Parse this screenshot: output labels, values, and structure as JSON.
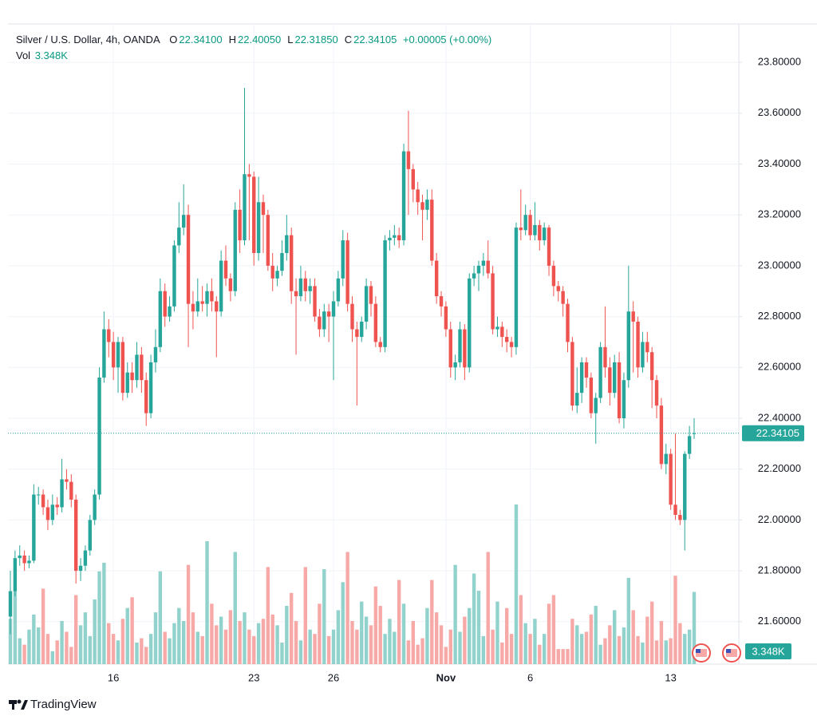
{
  "legend": {
    "symbol": "Silver / U.S. Dollar, 4h, OANDA",
    "fields": [
      {
        "key": "O",
        "value": "22.34100"
      },
      {
        "key": "H",
        "value": "22.40050"
      },
      {
        "key": "L",
        "value": "22.31850"
      },
      {
        "key": "C",
        "value": "22.34105"
      }
    ],
    "change": "+0.00005 (+0.00%)",
    "volume_label": "Vol",
    "volume_value": "3.348K"
  },
  "branding": "TradingView",
  "chart_data": {
    "type": "candlestick",
    "categories": [
      null,
      null,
      null,
      null,
      null,
      null,
      null,
      null,
      null,
      null,
      null,
      null,
      null,
      null,
      null,
      null,
      null,
      null,
      null,
      null,
      null,
      null,
      "16",
      null,
      null,
      null,
      null,
      null,
      null,
      null,
      null,
      null,
      null,
      null,
      null,
      null,
      null,
      null,
      null,
      null,
      null,
      null,
      null,
      null,
      null,
      null,
      null,
      null,
      null,
      null,
      null,
      null,
      "23",
      null,
      null,
      null,
      null,
      null,
      null,
      null,
      null,
      null,
      null,
      null,
      null,
      null,
      null,
      null,
      null,
      "26",
      null,
      null,
      null,
      null,
      null,
      null,
      null,
      null,
      null,
      null,
      null,
      null,
      null,
      null,
      null,
      null,
      null,
      null,
      null,
      null,
      null,
      null,
      null,
      "Nov",
      null,
      null,
      null,
      null,
      null,
      null,
      null,
      null,
      null,
      null,
      null,
      null,
      null,
      null,
      null,
      null,
      null,
      "6",
      null,
      null,
      null,
      null,
      null,
      null,
      null,
      null,
      null,
      null,
      null,
      null,
      null,
      null,
      null,
      null,
      null,
      null,
      null,
      null,
      null,
      null,
      null,
      null,
      null,
      null,
      null,
      null,
      null,
      "13",
      null,
      null,
      null,
      null,
      null
    ],
    "open": [
      21.62,
      21.72,
      21.85,
      21.86,
      21.83,
      21.84,
      22.1,
      22.1,
      22.05,
      22.0,
      22.06,
      22.05,
      22.16,
      22.15,
      22.08,
      21.8,
      21.82,
      21.88,
      22.0,
      22.1,
      22.56,
      22.75,
      22.7,
      22.6,
      22.7,
      22.5,
      22.58,
      22.55,
      22.65,
      22.55,
      22.42,
      22.62,
      22.68,
      22.9,
      22.8,
      22.84,
      23.08,
      23.15,
      23.2,
      22.85,
      22.82,
      22.86,
      22.85,
      22.9,
      22.86,
      22.82,
      23.02,
      22.95,
      22.9,
      23.22,
      23.1,
      23.36,
      23.35,
      23.05,
      23.25,
      23.2,
      23.0,
      22.95,
      22.98,
      23.05,
      23.12,
      22.9,
      22.88,
      22.95,
      22.9,
      22.92,
      22.8,
      22.75,
      22.82,
      22.8,
      22.86,
      22.95,
      23.1,
      22.85,
      22.75,
      22.72,
      22.78,
      22.92,
      22.85,
      22.7,
      22.68,
      23.1,
      23.11,
      23.12,
      23.1,
      23.45,
      23.38,
      23.3,
      23.25,
      23.22,
      23.26,
      23.02,
      22.88,
      22.84,
      22.75,
      22.6,
      22.62,
      22.75,
      22.6,
      22.95,
      22.97,
      23.0,
      23.02,
      22.97,
      22.75,
      22.76,
      22.72,
      22.7,
      22.68,
      23.15,
      23.14,
      23.2,
      23.12,
      23.16,
      23.1,
      23.15,
      23.0,
      22.92,
      22.9,
      22.85,
      22.7,
      22.45,
      22.5,
      22.62,
      22.56,
      22.42,
      22.48,
      22.68,
      22.6,
      22.5,
      22.62,
      22.4,
      22.55,
      22.82,
      22.78,
      22.6,
      22.7,
      22.66,
      22.55,
      22.45,
      22.22,
      22.26,
      22.06,
      22.02,
      22.0,
      22.26,
      22.341
    ],
    "high": [
      21.8,
      21.88,
      21.9,
      21.88,
      21.86,
      22.14,
      22.13,
      22.12,
      22.08,
      22.1,
      22.09,
      22.24,
      22.2,
      22.18,
      22.1,
      21.85,
      21.9,
      22.02,
      22.12,
      22.6,
      22.82,
      22.79,
      22.74,
      22.72,
      22.72,
      22.62,
      22.62,
      22.7,
      22.68,
      22.58,
      22.65,
      22.75,
      22.95,
      22.93,
      22.88,
      23.1,
      23.25,
      23.32,
      23.24,
      22.9,
      22.95,
      22.92,
      22.93,
      22.95,
      22.88,
      23.06,
      23.08,
      22.97,
      23.25,
      23.3,
      23.7,
      23.4,
      23.37,
      23.35,
      23.28,
      23.22,
      23.05,
      23.0,
      23.1,
      23.2,
      23.15,
      22.95,
      23.0,
      22.98,
      22.95,
      22.95,
      22.83,
      22.85,
      22.85,
      22.9,
      22.98,
      23.14,
      23.13,
      22.88,
      22.78,
      22.8,
      22.95,
      22.94,
      22.88,
      22.72,
      23.12,
      23.14,
      23.16,
      23.15,
      23.48,
      23.61,
      23.4,
      23.33,
      23.28,
      23.3,
      23.3,
      23.05,
      22.9,
      22.86,
      22.78,
      22.65,
      22.78,
      22.77,
      22.97,
      23.0,
      23.02,
      23.05,
      23.1,
      23.0,
      22.8,
      22.78,
      22.75,
      22.72,
      23.17,
      23.3,
      23.24,
      23.22,
      23.25,
      23.18,
      23.17,
      23.16,
      23.02,
      22.94,
      22.92,
      22.87,
      22.72,
      22.6,
      22.64,
      22.64,
      22.58,
      22.5,
      22.7,
      22.84,
      22.64,
      22.65,
      22.66,
      22.58,
      23.0,
      22.86,
      22.8,
      22.74,
      22.74,
      22.68,
      22.57,
      22.48,
      22.3,
      22.28,
      22.34,
      22.04,
      22.27,
      22.37,
      22.4005
    ],
    "low": [
      21.55,
      21.7,
      21.82,
      21.8,
      21.81,
      21.83,
      22.06,
      22.02,
      21.96,
      21.98,
      22.02,
      22.03,
      22.12,
      22.05,
      21.75,
      21.76,
      21.8,
      21.86,
      21.98,
      22.08,
      22.54,
      22.64,
      22.55,
      22.5,
      22.47,
      22.48,
      22.5,
      22.52,
      22.5,
      22.37,
      22.4,
      22.58,
      22.66,
      22.76,
      22.78,
      22.82,
      23.05,
      23.12,
      22.68,
      22.75,
      22.8,
      22.82,
      22.8,
      22.82,
      22.64,
      22.8,
      22.92,
      22.86,
      22.88,
      23.05,
      23.08,
      23.1,
      23.0,
      23.02,
      23.05,
      22.98,
      22.9,
      22.92,
      22.96,
      23.02,
      22.85,
      22.65,
      22.86,
      22.86,
      22.85,
      22.78,
      22.72,
      22.72,
      22.7,
      22.55,
      22.84,
      22.92,
      22.82,
      22.7,
      22.45,
      22.7,
      22.75,
      22.8,
      22.68,
      22.66,
      22.66,
      23.06,
      23.08,
      23.07,
      23.08,
      23.2,
      23.25,
      23.2,
      23.1,
      23.18,
      23.0,
      22.85,
      22.8,
      22.72,
      22.56,
      22.55,
      22.6,
      22.55,
      22.58,
      22.92,
      22.9,
      22.96,
      22.95,
      22.73,
      22.72,
      22.68,
      22.66,
      22.64,
      22.65,
      23.1,
      23.12,
      23.1,
      23.1,
      23.06,
      23.08,
      22.96,
      22.88,
      22.86,
      22.8,
      22.66,
      22.43,
      22.42,
      22.46,
      22.52,
      22.4,
      22.3,
      22.46,
      22.56,
      22.45,
      22.48,
      22.38,
      22.36,
      22.52,
      22.58,
      22.56,
      22.58,
      22.62,
      22.44,
      22.4,
      22.2,
      22.18,
      22.04,
      22.0,
      21.98,
      21.88,
      22.24,
      22.3185
    ],
    "close": [
      21.72,
      21.85,
      21.86,
      21.83,
      21.84,
      22.1,
      22.1,
      22.05,
      22.0,
      22.06,
      22.05,
      22.16,
      22.15,
      22.08,
      21.8,
      21.82,
      21.88,
      22.0,
      22.1,
      22.56,
      22.75,
      22.7,
      22.6,
      22.7,
      22.5,
      22.58,
      22.55,
      22.65,
      22.55,
      22.42,
      22.62,
      22.68,
      22.9,
      22.8,
      22.84,
      23.08,
      23.15,
      23.2,
      22.85,
      22.82,
      22.86,
      22.85,
      22.9,
      22.86,
      22.82,
      23.02,
      22.95,
      22.9,
      23.22,
      23.1,
      23.36,
      23.35,
      23.05,
      23.25,
      23.2,
      23.0,
      22.95,
      22.98,
      23.05,
      23.12,
      22.9,
      22.88,
      22.95,
      22.9,
      22.92,
      22.8,
      22.75,
      22.82,
      22.8,
      22.86,
      22.95,
      23.1,
      22.85,
      22.75,
      22.72,
      22.78,
      22.92,
      22.85,
      22.7,
      22.68,
      23.1,
      23.11,
      23.12,
      23.1,
      23.45,
      23.38,
      23.3,
      23.25,
      23.22,
      23.26,
      23.02,
      22.88,
      22.84,
      22.75,
      22.6,
      22.62,
      22.75,
      22.6,
      22.95,
      22.97,
      23.0,
      23.02,
      22.97,
      22.75,
      22.76,
      22.72,
      22.7,
      22.68,
      23.15,
      23.14,
      23.2,
      23.12,
      23.16,
      23.1,
      23.15,
      23.0,
      22.92,
      22.9,
      22.85,
      22.7,
      22.45,
      22.5,
      22.62,
      22.56,
      22.42,
      22.48,
      22.68,
      22.6,
      22.5,
      22.62,
      22.4,
      22.55,
      22.82,
      22.78,
      22.6,
      22.7,
      22.66,
      22.55,
      22.45,
      22.22,
      22.26,
      22.06,
      22.02,
      22.0,
      22.26,
      22.33,
      22.34105
    ],
    "volume": [
      2.1,
      3.4,
      1.2,
      0.9,
      1.6,
      2.3,
      1.7,
      3.5,
      1.4,
      0.6,
      1.1,
      2.0,
      1.5,
      0.8,
      3.2,
      1.8,
      2.4,
      1.3,
      3.0,
      4.3,
      4.7,
      1.9,
      1.4,
      1.1,
      2.1,
      2.6,
      3.1,
      1.0,
      1.2,
      0.8,
      1.4,
      2.4,
      4.3,
      1.5,
      1.2,
      1.9,
      2.6,
      2.0,
      4.6,
      2.4,
      1.5,
      1.3,
      5.7,
      2.8,
      1.8,
      2.2,
      1.6,
      2.5,
      5.2,
      2.0,
      2.4,
      1.6,
      1.3,
      1.9,
      2.1,
      4.5,
      2.3,
      1.8,
      1.0,
      2.7,
      3.3,
      2.0,
      1.1,
      4.5,
      1.6,
      1.4,
      2.8,
      4.4,
      1.3,
      1.6,
      2.5,
      3.8,
      5.2,
      2.0,
      1.6,
      2.9,
      2.2,
      1.8,
      3.6,
      2.7,
      1.4,
      2.1,
      1.5,
      3.9,
      2.8,
      1.1,
      2.0,
      0.9,
      1.2,
      2.6,
      3.9,
      2.4,
      1.8,
      0.8,
      1.6,
      4.6,
      1.5,
      2.2,
      2.6,
      4.2,
      3.4,
      1.3,
      5.2,
      1.6,
      2.9,
      1.0,
      2.6,
      1.4,
      7.4,
      3.2,
      1.9,
      1.4,
      2.1,
      0.9,
      1.4,
      2.8,
      3.2,
      0.7,
      0.7,
      0.7,
      2.1,
      1.8,
      1.4,
      1.5,
      2.3,
      2.7,
      0.9,
      1.2,
      1.8,
      2.5,
      1.3,
      1.7,
      4.0,
      2.5,
      1.3,
      1.0,
      2.2,
      2.9,
      1.1,
      2.0,
      1.1,
      1.2,
      4.1,
      1.9,
      1.4,
      1.6,
      3.348
    ],
    "ylim": [
      21.433,
      23.951
    ],
    "yticks": [
      {
        "value": 23.8,
        "label": "23.80000"
      },
      {
        "value": 23.6,
        "label": "23.60000"
      },
      {
        "value": 23.4,
        "label": "23.40000"
      },
      {
        "value": 23.2,
        "label": "23.20000"
      },
      {
        "value": 23.0,
        "label": "23.00000"
      },
      {
        "value": 22.8,
        "label": "22.80000"
      },
      {
        "value": 22.6,
        "label": "22.60000"
      },
      {
        "value": 22.4,
        "label": "22.40000"
      },
      {
        "value": 22.2,
        "label": "22.20000"
      },
      {
        "value": 22.0,
        "label": "22.00000"
      },
      {
        "value": 21.8,
        "label": "21.80000"
      },
      {
        "value": 21.6,
        "label": "21.60000"
      }
    ],
    "up_color": "#26a69a",
    "down_color": "#ef5350",
    "volume_up_color": "#92d2cc",
    "volume_down_color": "#f7a9a7",
    "grid": true
  }
}
